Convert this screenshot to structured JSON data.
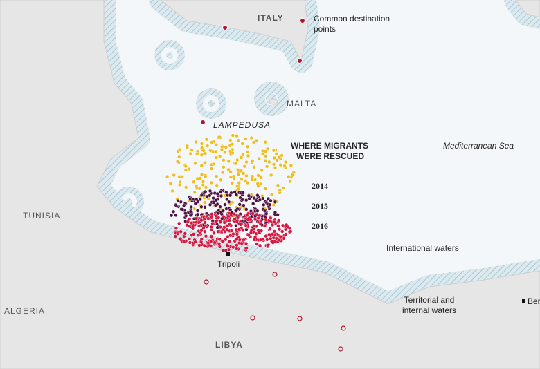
{
  "map": {
    "labels": {
      "italy": "ITALY",
      "destination": [
        "Common destination",
        "points"
      ],
      "malta": "MALTA",
      "lampedusa": "LAMPEDUSA",
      "sea": "Mediterranean Sea",
      "tunisia": "TUNISIA",
      "international": "International waters",
      "tripoli": "Tripoli",
      "territorial": [
        "Territorial and",
        "internal waters"
      ],
      "algeria": "ALGERIA",
      "libya": "LIBYA",
      "benghazi": "Ben"
    },
    "legend": {
      "title": [
        "WHERE MIGRANTS",
        "WERE RESCUED"
      ],
      "years": [
        {
          "label": "2014",
          "color": "#f0be1c"
        },
        {
          "label": "2015",
          "color": "#4e1242"
        },
        {
          "label": "2016",
          "color": "#d5163f"
        }
      ]
    }
  }
}
